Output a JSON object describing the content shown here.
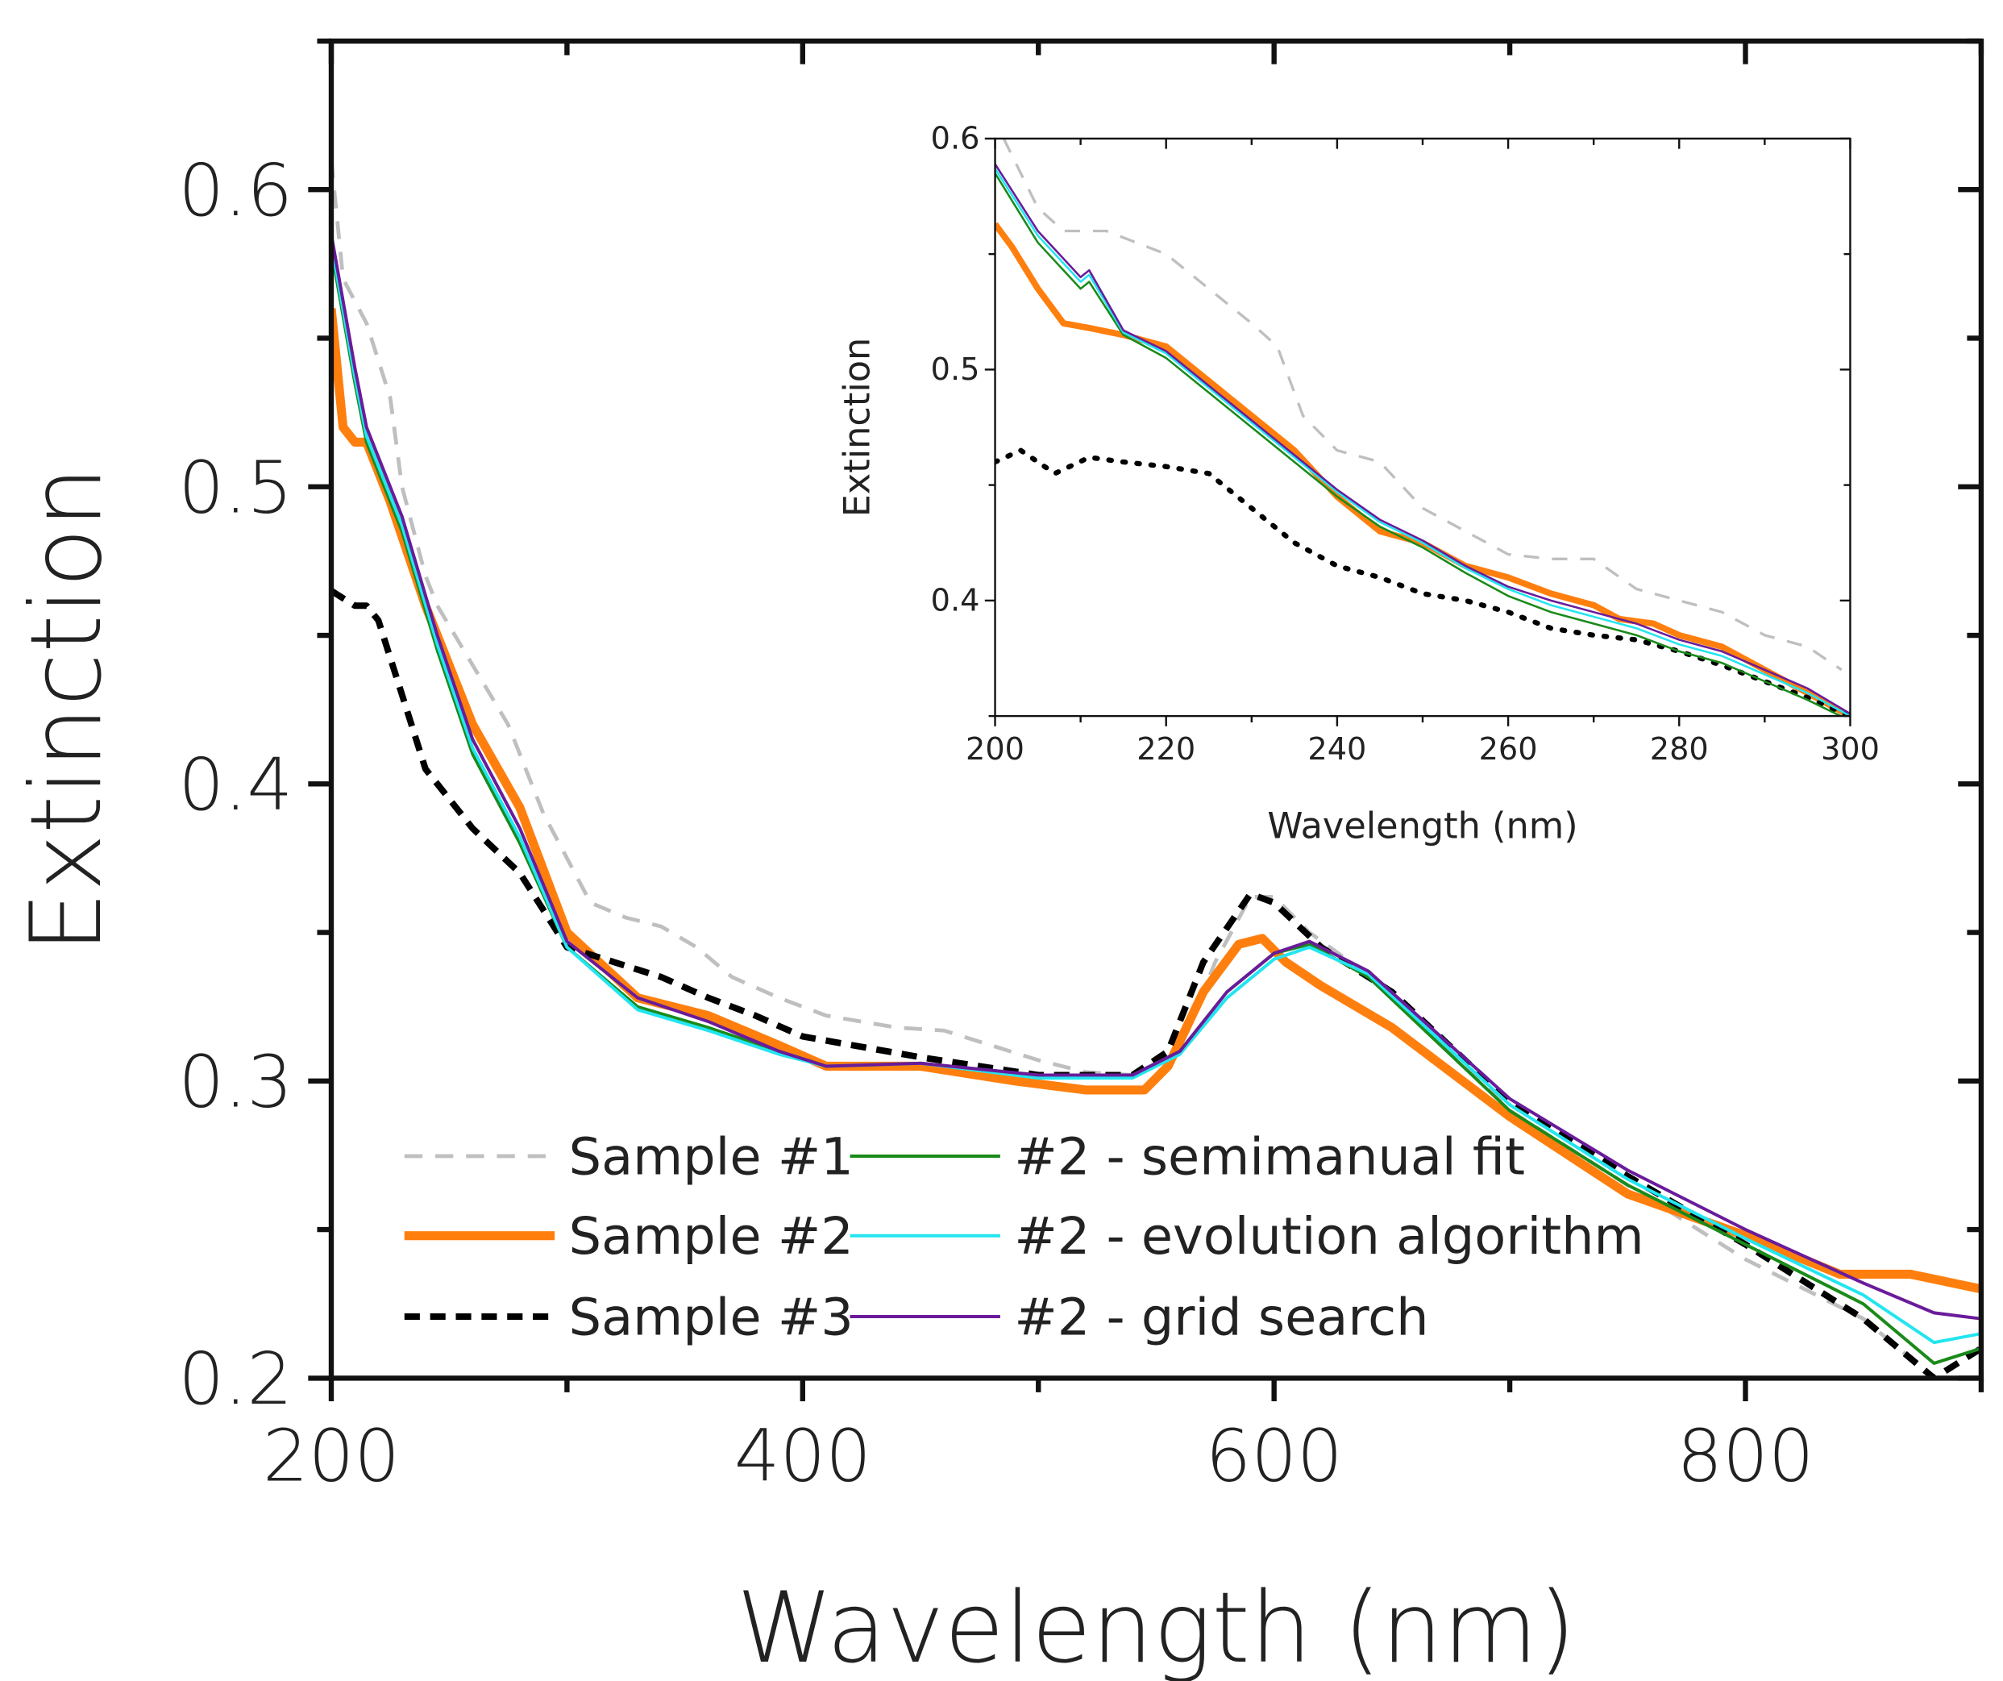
{
  "chart_data": [
    {
      "type": "line",
      "xlabel": "Wavelength (nm)",
      "ylabel": "Extinction",
      "xlim": [
        200,
        900
      ],
      "ylim": [
        0.2,
        0.65
      ],
      "xticks": [
        200,
        400,
        600,
        800
      ],
      "xtick_labels": [
        "200",
        "400",
        "600",
        "800"
      ],
      "yticks": [
        0.2,
        0.3,
        0.4,
        0.5,
        0.6
      ],
      "ytick_labels": [
        "0.2",
        "0.3",
        "0.4",
        "0.5",
        "0.6"
      ],
      "grid": false,
      "legend_placement": "bottom-left",
      "series": [
        {
          "name": "Sample #1",
          "color": "#bfbfbf",
          "style": "dashed",
          "x": [
            200,
            205,
            215,
            225,
            230,
            240,
            245,
            260,
            275,
            290,
            300,
            310,
            325,
            340,
            355,
            370,
            390,
            410,
            440,
            460,
            500,
            520,
            540,
            560,
            575,
            590,
            600,
            615,
            650,
            700,
            750,
            800,
            850,
            880
          ],
          "y": [
            0.61,
            0.57,
            0.555,
            0.53,
            0.5,
            0.47,
            0.46,
            0.44,
            0.42,
            0.39,
            0.375,
            0.36,
            0.355,
            0.352,
            0.345,
            0.335,
            0.328,
            0.322,
            0.318,
            0.317,
            0.307,
            0.303,
            0.302,
            0.31,
            0.34,
            0.362,
            0.362,
            0.35,
            0.33,
            0.29,
            0.265,
            0.24,
            0.22,
            0.2
          ]
        },
        {
          "name": "Sample #2",
          "color": "#ff7f0e",
          "style": "solid-thick",
          "x": [
            200,
            205,
            210,
            215,
            225,
            240,
            260,
            280,
            300,
            330,
            360,
            390,
            410,
            450,
            490,
            520,
            545,
            555,
            570,
            585,
            595,
            605,
            620,
            650,
            700,
            750,
            800,
            840,
            870,
            900
          ],
          "y": [
            0.56,
            0.52,
            0.515,
            0.515,
            0.495,
            0.46,
            0.42,
            0.392,
            0.35,
            0.328,
            0.322,
            0.312,
            0.305,
            0.305,
            0.3,
            0.297,
            0.297,
            0.305,
            0.33,
            0.346,
            0.348,
            0.34,
            0.332,
            0.318,
            0.288,
            0.262,
            0.248,
            0.235,
            0.235,
            0.23
          ]
        },
        {
          "name": "Sample #3",
          "color": "#000000",
          "style": "dashed-thick",
          "x": [
            200,
            210,
            215,
            220,
            230,
            240,
            260,
            280,
            300,
            320,
            340,
            360,
            380,
            400,
            450,
            500,
            540,
            555,
            570,
            590,
            600,
            620,
            650,
            700,
            750,
            800,
            850,
            880,
            900
          ],
          "y": [
            0.465,
            0.46,
            0.46,
            0.455,
            0.43,
            0.405,
            0.385,
            0.37,
            0.345,
            0.34,
            0.335,
            0.328,
            0.322,
            0.315,
            0.308,
            0.302,
            0.302,
            0.31,
            0.34,
            0.363,
            0.36,
            0.345,
            0.33,
            0.293,
            0.268,
            0.245,
            0.22,
            0.2,
            0.21
          ]
        },
        {
          "name": "#2 - semimanual fit",
          "color": "#1a8a1a",
          "style": "solid",
          "x": [
            200,
            210,
            215,
            230,
            245,
            260,
            280,
            300,
            330,
            360,
            390,
            410,
            450,
            500,
            540,
            560,
            580,
            600,
            615,
            640,
            700,
            750,
            800,
            850,
            880,
            900
          ],
          "y": [
            0.58,
            0.535,
            0.515,
            0.485,
            0.445,
            0.41,
            0.38,
            0.345,
            0.325,
            0.318,
            0.31,
            0.305,
            0.306,
            0.302,
            0.302,
            0.31,
            0.33,
            0.343,
            0.346,
            0.335,
            0.29,
            0.265,
            0.245,
            0.225,
            0.205,
            0.21
          ]
        },
        {
          "name": "#2 - evolution algorithm",
          "color": "#22e5f0",
          "style": "solid",
          "x": [
            200,
            210,
            215,
            230,
            245,
            260,
            280,
            300,
            330,
            360,
            390,
            410,
            450,
            500,
            540,
            560,
            580,
            600,
            615,
            640,
            700,
            750,
            800,
            850,
            880,
            900
          ],
          "y": [
            0.582,
            0.537,
            0.517,
            0.487,
            0.447,
            0.412,
            0.382,
            0.345,
            0.324,
            0.317,
            0.309,
            0.305,
            0.306,
            0.301,
            0.301,
            0.309,
            0.328,
            0.341,
            0.345,
            0.336,
            0.292,
            0.267,
            0.247,
            0.228,
            0.212,
            0.215
          ]
        },
        {
          "name": "#2 - grid search",
          "color": "#6a1b9a",
          "style": "solid",
          "x": [
            200,
            210,
            215,
            230,
            245,
            260,
            280,
            300,
            330,
            360,
            390,
            410,
            450,
            500,
            540,
            560,
            580,
            600,
            615,
            640,
            700,
            750,
            800,
            850,
            880,
            900
          ],
          "y": [
            0.585,
            0.54,
            0.52,
            0.49,
            0.45,
            0.415,
            0.385,
            0.347,
            0.328,
            0.32,
            0.31,
            0.305,
            0.306,
            0.302,
            0.302,
            0.31,
            0.33,
            0.343,
            0.347,
            0.337,
            0.294,
            0.27,
            0.25,
            0.232,
            0.222,
            0.22
          ]
        }
      ]
    },
    {
      "type": "line",
      "inset": true,
      "xlabel": "Wavelength (nm)",
      "ylabel": "Extinction",
      "xlim": [
        200,
        300
      ],
      "ylim": [
        0.35,
        0.6
      ],
      "xticks": [
        200,
        220,
        240,
        260,
        280,
        300
      ],
      "xtick_labels": [
        "200",
        "220",
        "240",
        "260",
        "280",
        "300"
      ],
      "yticks": [
        0.4,
        0.5,
        0.6
      ],
      "ytick_labels": [
        "0.4",
        "0.5",
        "0.6"
      ],
      "grid": false,
      "series": [
        {
          "color": "#bfbfbf",
          "style": "dashed",
          "x": [
            201,
            205,
            208,
            213,
            220,
            225,
            230,
            233,
            236,
            240,
            245,
            250,
            255,
            260,
            265,
            270,
            275,
            280,
            285,
            290,
            295,
            299
          ],
          "y": [
            0.6,
            0.57,
            0.56,
            0.56,
            0.55,
            0.535,
            0.52,
            0.51,
            0.48,
            0.465,
            0.46,
            0.44,
            0.43,
            0.42,
            0.418,
            0.418,
            0.405,
            0.4,
            0.395,
            0.385,
            0.38,
            0.37
          ]
        },
        {
          "color": "#ff7f0e",
          "style": "solid-thick",
          "x": [
            200,
            202,
            205,
            208,
            211,
            215,
            220,
            225,
            230,
            235,
            240,
            245,
            250,
            255,
            260,
            265,
            270,
            273,
            277,
            280,
            285,
            290,
            295,
            300
          ],
          "y": [
            0.563,
            0.553,
            0.535,
            0.52,
            0.518,
            0.515,
            0.51,
            0.495,
            0.48,
            0.465,
            0.445,
            0.43,
            0.425,
            0.415,
            0.41,
            0.403,
            0.398,
            0.392,
            0.39,
            0.385,
            0.38,
            0.37,
            0.36,
            0.35
          ]
        },
        {
          "color": "#000000",
          "style": "dotted",
          "x": [
            200,
            203,
            207,
            211,
            215,
            220,
            225,
            230,
            235,
            240,
            245,
            250,
            255,
            260,
            265,
            270,
            275,
            280,
            285,
            290,
            295,
            300
          ],
          "y": [
            0.46,
            0.465,
            0.455,
            0.462,
            0.46,
            0.458,
            0.455,
            0.44,
            0.425,
            0.415,
            0.41,
            0.403,
            0.4,
            0.395,
            0.388,
            0.385,
            0.383,
            0.378,
            0.372,
            0.365,
            0.358,
            0.35
          ]
        },
        {
          "color": "#1a8a1a",
          "style": "solid",
          "x": [
            200,
            205,
            210,
            211,
            215,
            220,
            225,
            230,
            235,
            240,
            245,
            250,
            255,
            260,
            265,
            270,
            275,
            280,
            285,
            290,
            295,
            300
          ],
          "y": [
            0.585,
            0.555,
            0.535,
            0.538,
            0.515,
            0.505,
            0.49,
            0.475,
            0.46,
            0.445,
            0.432,
            0.423,
            0.412,
            0.402,
            0.395,
            0.39,
            0.385,
            0.378,
            0.373,
            0.365,
            0.357,
            0.348
          ]
        },
        {
          "color": "#22e5f0",
          "style": "solid",
          "x": [
            200,
            205,
            210,
            211,
            215,
            220,
            225,
            230,
            235,
            240,
            245,
            250,
            255,
            260,
            265,
            270,
            275,
            280,
            285,
            290,
            295,
            300
          ],
          "y": [
            0.587,
            0.558,
            0.538,
            0.541,
            0.516,
            0.507,
            0.492,
            0.477,
            0.462,
            0.447,
            0.434,
            0.425,
            0.414,
            0.405,
            0.398,
            0.393,
            0.388,
            0.381,
            0.376,
            0.368,
            0.36,
            0.35
          ]
        },
        {
          "color": "#6a1b9a",
          "style": "solid",
          "x": [
            200,
            205,
            210,
            211,
            215,
            220,
            225,
            230,
            235,
            240,
            245,
            250,
            255,
            260,
            265,
            270,
            275,
            280,
            285,
            290,
            295,
            300
          ],
          "y": [
            0.589,
            0.56,
            0.54,
            0.543,
            0.517,
            0.508,
            0.493,
            0.478,
            0.463,
            0.448,
            0.435,
            0.426,
            0.415,
            0.406,
            0.4,
            0.395,
            0.39,
            0.383,
            0.378,
            0.37,
            0.362,
            0.351
          ]
        }
      ]
    }
  ]
}
